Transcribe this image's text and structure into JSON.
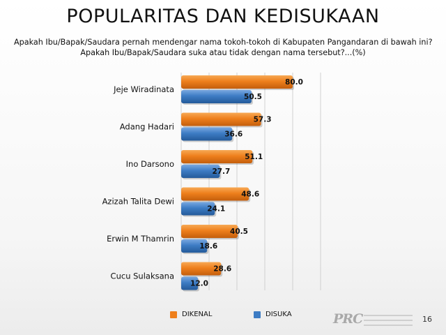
{
  "title": "POPULARITAS DAN KEDISUKAAN",
  "subtitle_line1": "Apakah Ibu/Bapak/Saudara pernah mendengar nama tokoh-tokoh di Kabupaten Pangandaran di bawah ini?",
  "subtitle_line2": "Apakah Ibu/Bapak/Saudara suka atau tidak dengan nama tersebut?...(%)",
  "page_number": "16",
  "logo_text": "PRC",
  "colors": {
    "dikenal": "#ee7f1c",
    "disuka": "#3d7cc4",
    "grid": "#d0d0d0"
  },
  "chart_data": {
    "type": "bar",
    "orientation": "horizontal",
    "categories": [
      "Jeje Wiradinata",
      "Adang Hadari",
      "Ino Darsono",
      "Azizah Talita Dewi",
      "Erwin M Thamrin",
      "Cucu Sulaksana"
    ],
    "series": [
      {
        "name": "DIKENAL",
        "values": [
          80.0,
          57.3,
          51.1,
          48.6,
          40.5,
          28.6
        ],
        "labels": [
          "80.0",
          "57.3",
          "51.1",
          "48.6",
          "40.5",
          "28.6"
        ]
      },
      {
        "name": "DISUKA",
        "values": [
          50.5,
          36.6,
          27.7,
          24.1,
          18.6,
          12.0
        ],
        "labels": [
          "50.5",
          "36.6",
          "27.7",
          "24.1",
          "18.6",
          "12.0"
        ]
      }
    ],
    "xlim": [
      0,
      100
    ],
    "grid": true,
    "legend_position": "bottom"
  }
}
